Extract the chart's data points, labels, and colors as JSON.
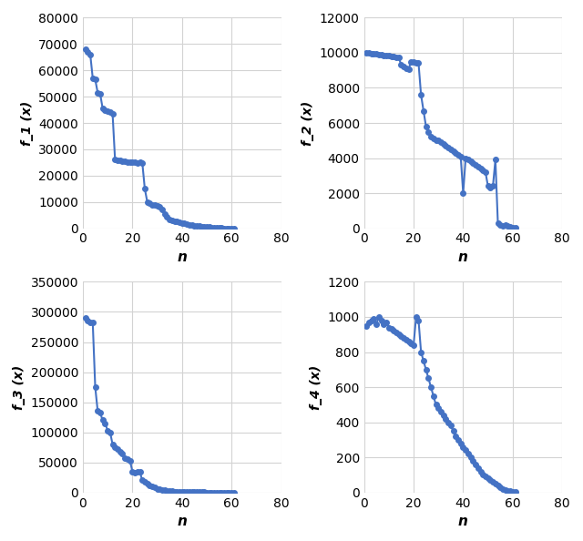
{
  "f1": {
    "x": [
      1,
      2,
      3,
      4,
      5,
      6,
      7,
      8,
      9,
      10,
      11,
      12,
      13,
      14,
      15,
      16,
      17,
      18,
      19,
      20,
      21,
      22,
      23,
      24,
      25,
      26,
      27,
      28,
      29,
      30,
      31,
      32,
      33,
      34,
      35,
      36,
      37,
      38,
      39,
      40,
      41,
      42,
      43,
      44,
      45,
      46,
      47,
      48,
      49,
      50,
      51,
      52,
      53,
      54,
      55,
      56,
      57,
      58,
      59,
      60,
      61
    ],
    "y": [
      68000,
      67000,
      66000,
      57000,
      56500,
      51500,
      51000,
      45500,
      45000,
      44500,
      44000,
      43500,
      26000,
      25800,
      25700,
      25500,
      25400,
      25300,
      25200,
      25100,
      25000,
      24900,
      25000,
      24800,
      15000,
      10000,
      9500,
      9000,
      8800,
      8500,
      8300,
      7000,
      5500,
      4500,
      3500,
      3000,
      2800,
      2500,
      2200,
      2000,
      1800,
      1600,
      1400,
      1200,
      1000,
      900,
      800,
      700,
      600,
      500,
      400,
      300,
      200,
      150,
      100,
      50,
      20,
      10,
      5,
      2,
      1
    ],
    "ylabel": "f_1 (x)",
    "xlabel": "n",
    "ylim": [
      0,
      80000
    ],
    "xlim": [
      0,
      80
    ],
    "yticks": [
      0,
      10000,
      20000,
      30000,
      40000,
      50000,
      60000,
      70000,
      80000
    ],
    "xticks": [
      0,
      20,
      40,
      60,
      80
    ]
  },
  "f2": {
    "x": [
      1,
      2,
      3,
      4,
      5,
      6,
      7,
      8,
      9,
      10,
      11,
      12,
      13,
      14,
      15,
      16,
      17,
      18,
      19,
      20,
      21,
      22,
      23,
      24,
      25,
      26,
      27,
      28,
      29,
      30,
      31,
      32,
      33,
      34,
      35,
      36,
      37,
      38,
      39,
      40,
      41,
      42,
      43,
      44,
      45,
      46,
      47,
      48,
      49,
      50,
      51,
      52,
      53,
      54,
      55,
      56,
      57,
      58,
      59,
      60,
      61
    ],
    "y": [
      10000,
      9980,
      9960,
      9940,
      9920,
      9900,
      9880,
      9860,
      9840,
      9820,
      9800,
      9780,
      9760,
      9740,
      9300,
      9200,
      9100,
      9080,
      9500,
      9480,
      9450,
      9400,
      7600,
      6700,
      5800,
      5500,
      5200,
      5100,
      5000,
      5000,
      4900,
      4800,
      4700,
      4600,
      4500,
      4400,
      4300,
      4200,
      4100,
      2000,
      4000,
      3900,
      3800,
      3700,
      3600,
      3500,
      3400,
      3300,
      3200,
      2400,
      2300,
      2400,
      3900,
      300,
      200,
      150,
      200,
      150,
      100,
      50,
      20
    ],
    "ylabel": "f_2 (x)",
    "xlabel": "n",
    "ylim": [
      0,
      12000
    ],
    "xlim": [
      0,
      80
    ],
    "yticks": [
      0,
      2000,
      4000,
      6000,
      8000,
      10000,
      12000
    ],
    "xticks": [
      0,
      20,
      40,
      60,
      80
    ]
  },
  "f3": {
    "x": [
      1,
      2,
      3,
      4,
      5,
      6,
      7,
      8,
      9,
      10,
      11,
      12,
      13,
      14,
      15,
      16,
      17,
      18,
      19,
      20,
      21,
      22,
      23,
      24,
      25,
      26,
      27,
      28,
      29,
      30,
      31,
      32,
      33,
      34,
      35,
      36,
      37,
      38,
      39,
      40,
      41,
      42,
      43,
      44,
      45,
      46,
      47,
      48,
      49,
      50,
      51,
      52,
      53,
      54,
      55,
      56,
      57,
      58,
      59,
      60,
      61
    ],
    "y": [
      290000,
      285000,
      283000,
      282000,
      175000,
      135000,
      132000,
      120000,
      115000,
      103000,
      100000,
      80000,
      75000,
      72000,
      68000,
      65000,
      57000,
      55000,
      53000,
      35000,
      33000,
      35000,
      34000,
      20000,
      18000,
      15000,
      12000,
      10000,
      8000,
      6000,
      5000,
      4000,
      3500,
      3000,
      2500,
      2000,
      1800,
      1600,
      1400,
      1200,
      1000,
      900,
      800,
      700,
      600,
      500,
      400,
      350,
      300,
      250,
      200,
      150,
      100,
      80,
      60,
      40,
      20,
      10,
      5,
      2,
      1
    ],
    "ylabel": "f_3 (x)",
    "xlabel": "n",
    "ylim": [
      0,
      350000
    ],
    "xlim": [
      0,
      80
    ],
    "yticks": [
      0,
      50000,
      100000,
      150000,
      200000,
      250000,
      300000,
      350000
    ],
    "xticks": [
      0,
      20,
      40,
      60,
      80
    ]
  },
  "f4": {
    "x": [
      1,
      2,
      3,
      4,
      5,
      6,
      7,
      8,
      9,
      10,
      11,
      12,
      13,
      14,
      15,
      16,
      17,
      18,
      19,
      20,
      21,
      22,
      23,
      24,
      25,
      26,
      27,
      28,
      29,
      30,
      31,
      32,
      33,
      34,
      35,
      36,
      37,
      38,
      39,
      40,
      41,
      42,
      43,
      44,
      45,
      46,
      47,
      48,
      49,
      50,
      51,
      52,
      53,
      54,
      55,
      56,
      57,
      58,
      59,
      60,
      61
    ],
    "y": [
      950,
      970,
      980,
      990,
      960,
      1000,
      980,
      960,
      970,
      940,
      930,
      920,
      910,
      900,
      890,
      880,
      870,
      860,
      850,
      840,
      1000,
      980,
      800,
      750,
      700,
      650,
      600,
      550,
      500,
      480,
      460,
      440,
      420,
      400,
      380,
      350,
      320,
      300,
      280,
      260,
      240,
      220,
      200,
      180,
      160,
      140,
      120,
      100,
      90,
      80,
      70,
      60,
      50,
      40,
      30,
      20,
      15,
      10,
      8,
      5,
      2
    ],
    "ylabel": "f_4 (x)",
    "xlabel": "n",
    "ylim": [
      0,
      1200
    ],
    "xlim": [
      0,
      80
    ],
    "yticks": [
      0,
      200,
      400,
      600,
      800,
      1000,
      1200
    ],
    "xticks": [
      0,
      20,
      40,
      60,
      80
    ]
  },
  "line_color": "#4472C4",
  "marker": "o",
  "markersize": 4,
  "linewidth": 1.5,
  "grid_color": "#D3D3D3",
  "bg_color": "#FFFFFF"
}
